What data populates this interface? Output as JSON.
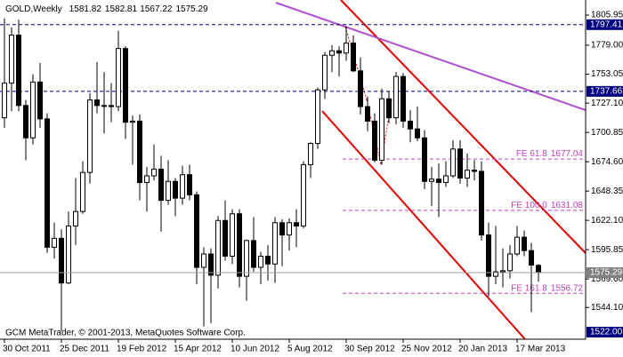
{
  "chart_data": {
    "type": "candlestick",
    "title": "GOLD,Weekly",
    "source": "GCM MetaTrader, © 2001-2013, MetaQuotes Software Corp.",
    "categories": [
      "30 Oct 2011",
      null,
      null,
      null,
      null,
      null,
      null,
      null,
      "25 Dec 2011",
      null,
      null,
      null,
      null,
      null,
      null,
      null,
      "19 Feb 2012",
      null,
      null,
      null,
      null,
      null,
      null,
      null,
      "15 Apr 2012",
      null,
      null,
      null,
      null,
      null,
      null,
      null,
      "10 Jun 2012",
      null,
      null,
      null,
      null,
      null,
      null,
      null,
      "5 Aug 2012",
      null,
      null,
      null,
      null,
      null,
      null,
      null,
      "30 Sep 2012",
      null,
      null,
      null,
      null,
      null,
      null,
      null,
      "25 Nov 2012",
      null,
      null,
      null,
      null,
      null,
      null,
      null,
      "20 Jan 2013",
      null,
      null,
      null,
      null,
      null,
      null,
      null,
      "17 Mar 2013",
      null,
      null,
      null
    ],
    "open": [
      1714,
      1745,
      1788,
      1725,
      1696,
      1746,
      1713,
      1598,
      1606,
      1566,
      1617,
      1630,
      1665,
      1730,
      1725,
      1725,
      1724,
      1776,
      1710,
      1711,
      1656,
      1662,
      1668,
      1640,
      1657,
      1642,
      1663,
      1645,
      1580,
      1592,
      1573,
      1622,
      1590,
      1628,
      1572,
      1604,
      1580,
      1590,
      1583,
      1620,
      1609,
      1620,
      1617,
      1672,
      1691,
      1739,
      1770,
      1774,
      1772,
      1781,
      1756,
      1724,
      1711,
      1676,
      1731,
      1714,
      1751,
      1711,
      1704,
      1696,
      1657,
      1659,
      1656,
      1662,
      1686,
      1660,
      1667,
      1666,
      1609,
      1572,
      1576,
      1577,
      1592,
      1607,
      1595,
      1581.82
    ],
    "high": [
      1803,
      1795,
      1802,
      1730,
      1753,
      1763,
      1718,
      1620,
      1614,
      1630,
      1660,
      1675,
      1736,
      1764,
      1755,
      1745,
      1792,
      1778,
      1716,
      1717,
      1670,
      1690,
      1680,
      1676,
      1660,
      1671,
      1672,
      1648,
      1598,
      1597,
      1626,
      1640,
      1632,
      1632,
      1605,
      1625,
      1594,
      1600,
      1625,
      1623,
      1624,
      1632,
      1675,
      1692,
      1741,
      1773,
      1779,
      1778,
      1796,
      1788,
      1768,
      1733,
      1718,
      1740,
      1738,
      1755,
      1754,
      1721,
      1724,
      1703,
      1670,
      1673,
      1675,
      1694,
      1694,
      1682,
      1676,
      1675,
      1620,
      1617,
      1597,
      1600,
      1617,
      1613,
      1602,
      1582.81
    ],
    "low": [
      1705,
      1720,
      1720,
      1676,
      1690,
      1705,
      1593,
      1588,
      1523,
      1565,
      1600,
      1628,
      1655,
      1718,
      1700,
      1710,
      1720,
      1695,
      1672,
      1640,
      1630,
      1658,
      1612,
      1636,
      1626,
      1636,
      1640,
      1565,
      1527,
      1530,
      1561,
      1586,
      1583,
      1562,
      1550,
      1576,
      1565,
      1568,
      1566,
      1581,
      1595,
      1598,
      1615,
      1660,
      1686,
      1731,
      1755,
      1751,
      1765,
      1755,
      1717,
      1702,
      1674,
      1672,
      1709,
      1708,
      1705,
      1692,
      1693,
      1650,
      1635,
      1625,
      1652,
      1660,
      1655,
      1652,
      1658,
      1604,
      1554,
      1565,
      1562,
      1570,
      1590,
      1590,
      1540,
      1567.22
    ],
    "close": [
      1745,
      1788,
      1725,
      1696,
      1746,
      1713,
      1598,
      1606,
      1566,
      1617,
      1630,
      1665,
      1730,
      1725,
      1725,
      1724,
      1776,
      1710,
      1711,
      1656,
      1662,
      1668,
      1640,
      1657,
      1642,
      1663,
      1645,
      1580,
      1592,
      1573,
      1622,
      1590,
      1628,
      1572,
      1604,
      1580,
      1590,
      1583,
      1620,
      1609,
      1620,
      1617,
      1672,
      1691,
      1739,
      1770,
      1774,
      1772,
      1781,
      1756,
      1724,
      1711,
      1676,
      1731,
      1714,
      1751,
      1711,
      1704,
      1696,
      1657,
      1659,
      1656,
      1662,
      1686,
      1660,
      1667,
      1666,
      1609,
      1572,
      1576,
      1577,
      1592,
      1607,
      1595,
      1582,
      1575.29
    ],
    "up_color": "#ffffff",
    "down_color": "#000000",
    "ylim": [
      1515.6,
      1819.5
    ],
    "yticks": [
      1805.95,
      {
        "value": 1779,
        "label": "1779.00"
      },
      1753.05,
      {
        "value": 1727.1,
        "label": "1727.10"
      },
      1700.85,
      {
        "value": 1674.6,
        "label": "1674.60"
      },
      1648.35,
      {
        "value": 1622.1,
        "label": "1622.10"
      },
      1595.85,
      {
        "value": 1569.6,
        "label": "1569.60"
      },
      {
        "value": 1544.1,
        "label": "1544.10"
      }
    ],
    "levels": [
      1797.41,
      1737.66
    ],
    "level_color": "#000080",
    "low_level": {
      "value": 1522,
      "label": "1522.00"
    },
    "fibo": [
      {
        "name": "FE 61.8",
        "value": 1677.04
      },
      {
        "name": "FE 100.0",
        "value": 1631.08
      },
      {
        "name": "FE 161.8",
        "value": 1556.72
      }
    ],
    "fibo_color": "#c040c0"
  }
}
